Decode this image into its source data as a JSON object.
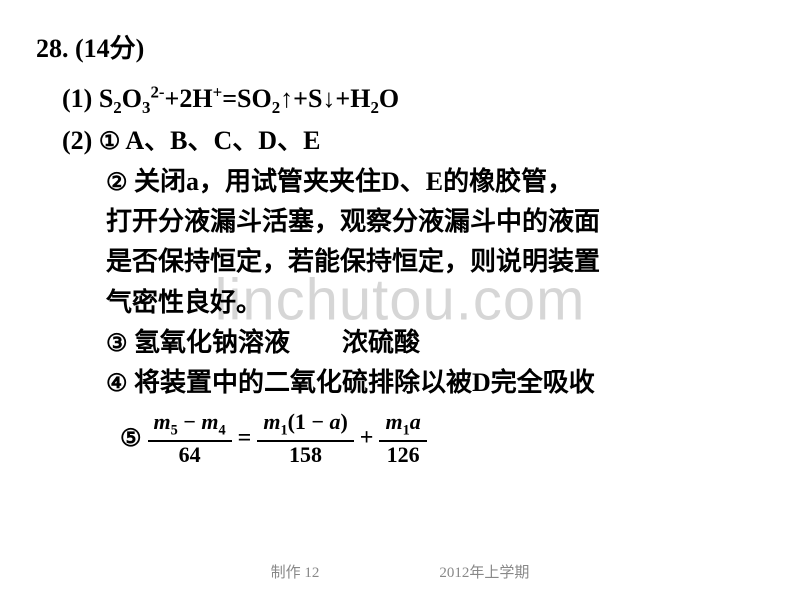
{
  "header": "28. (14分)",
  "eq1_prefix": "(1) ",
  "eq1_parts": {
    "a": "S",
    "b": "O",
    "c": "+2H",
    "d": "=SO",
    "e": "↑+S↓+H",
    "f": "O"
  },
  "part2_prefix": "(2) ",
  "item1_marker": "①",
  "item1_text": " A、B、C、D、E",
  "item2_marker": "②",
  "item2_l1": " 关闭a，用试管夹夹住D、E的橡胶管，",
  "item2_l2": "打开分液漏斗活塞，观察分液漏斗中的液面",
  "item2_l3": "是否保持恒定，若能保持恒定，则说明装置",
  "item2_l4": "气密性良好。",
  "item3_marker": "③",
  "item3_text": " 氢氧化钠溶液  浓硫酸",
  "item4_marker": "④",
  "item4_text": " 将装置中的二氧化硫排除以被D完全吸收",
  "item5_marker": "⑤",
  "frac": {
    "num1a": "m",
    "num1b": " − ",
    "num1c": "m",
    "den1": "64",
    "eq": "=",
    "num2a": "m",
    "num2b": "(1 − ",
    "num2c": "a",
    "num2d": ")",
    "den2": "158",
    "plus": "+",
    "num3a": "m",
    "num3b": "a",
    "den3": "126"
  },
  "watermark": "linchutou.com",
  "footer_left": "制作 12",
  "footer_right": "2012年上学期"
}
